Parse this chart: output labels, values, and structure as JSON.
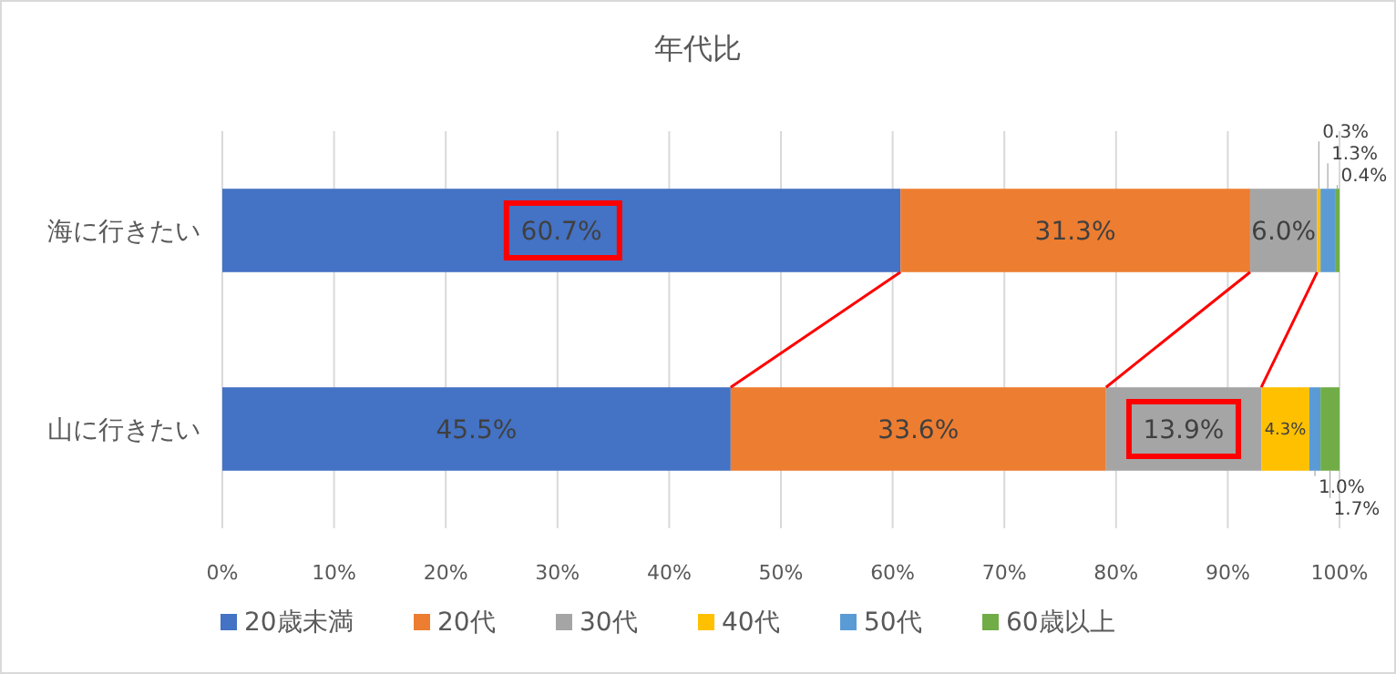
{
  "chart_data": {
    "type": "bar",
    "orientation": "horizontal",
    "stacked": true,
    "title": "年代比",
    "categories": [
      "海に行きたい",
      "山に行きたい"
    ],
    "series": [
      {
        "name": "20歳未満",
        "color": "#4472c4",
        "values": [
          60.7,
          45.5
        ],
        "value_labels": [
          "60.7%",
          "45.5%"
        ]
      },
      {
        "name": "20代",
        "color": "#ed7d31",
        "values": [
          31.3,
          33.6
        ],
        "value_labels": [
          "31.3%",
          "33.6%"
        ]
      },
      {
        "name": "30代",
        "color": "#a5a5a5",
        "values": [
          6.0,
          13.9
        ],
        "value_labels": [
          "6.0%",
          "13.9%"
        ]
      },
      {
        "name": "40代",
        "color": "#ffc000",
        "values": [
          0.3,
          4.3
        ],
        "value_labels": [
          "0.3%",
          "4.3%"
        ]
      },
      {
        "name": "50代",
        "color": "#5b9bd5",
        "values": [
          1.3,
          1.0
        ],
        "value_labels": [
          "1.3%",
          "1.0%"
        ]
      },
      {
        "name": "60歳以上",
        "color": "#70ad47",
        "values": [
          0.4,
          1.7
        ],
        "value_labels": [
          "0.4%",
          "1.7%"
        ]
      }
    ],
    "xlim": [
      0,
      100
    ],
    "xticks": [
      {
        "value": 0,
        "label": "0%"
      },
      {
        "value": 10,
        "label": "10%"
      },
      {
        "value": 20,
        "label": "20%"
      },
      {
        "value": 30,
        "label": "30%"
      },
      {
        "value": 40,
        "label": "40%"
      },
      {
        "value": 50,
        "label": "50%"
      },
      {
        "value": 60,
        "label": "60%"
      },
      {
        "value": 70,
        "label": "70%"
      },
      {
        "value": 80,
        "label": "80%"
      },
      {
        "value": 90,
        "label": "90%"
      },
      {
        "value": 100,
        "label": "100%"
      }
    ],
    "grid": "x",
    "legend": "bottom"
  }
}
